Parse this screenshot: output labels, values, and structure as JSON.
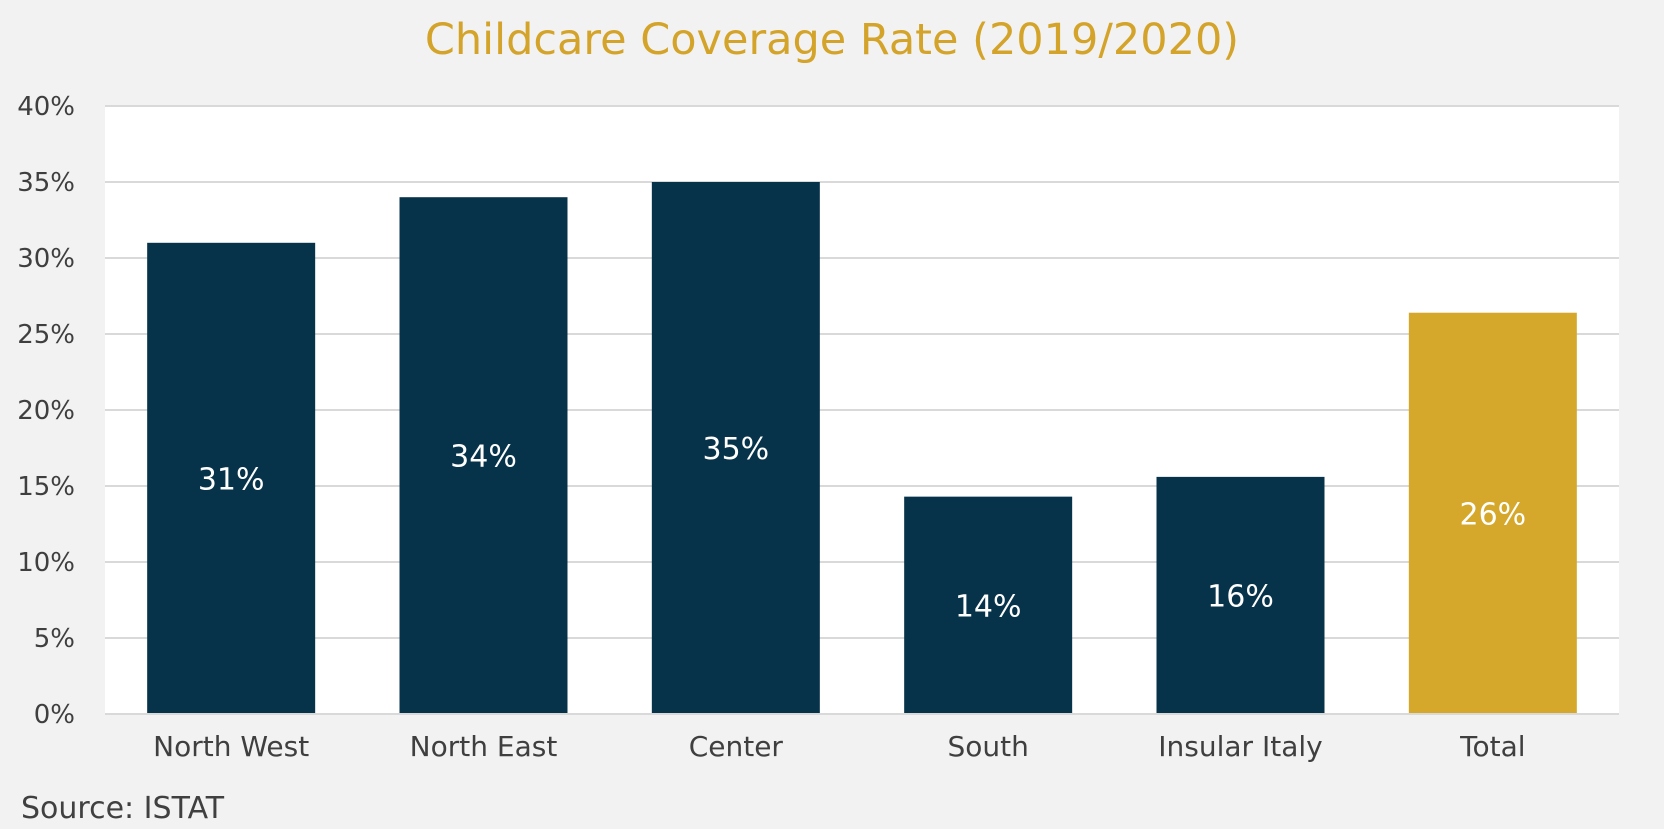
{
  "chart_data": {
    "type": "bar",
    "title": "Childcare Coverage Rate (2019/2020)",
    "categories": [
      "North West",
      "North East",
      "Center",
      "South",
      "Insular Italy",
      "Total"
    ],
    "values": [
      31,
      34,
      35,
      14.3,
      15.6,
      26.4
    ],
    "data_labels": [
      "31%",
      "34%",
      "35%",
      "14%",
      "16%",
      "26%"
    ],
    "ylim": [
      0,
      40
    ],
    "y_ticks": [
      0,
      5,
      10,
      15,
      20,
      25,
      30,
      35,
      40
    ],
    "y_tick_labels": [
      "0%",
      "5%",
      "10%",
      "15%",
      "20%",
      "25%",
      "30%",
      "35%",
      "40%"
    ],
    "grid": true,
    "legend": "none",
    "bar_colors": [
      "#07334a",
      "#07334a",
      "#07334a",
      "#07334a",
      "#07334a",
      "#d5a82b"
    ],
    "title_color": "#d4a42a",
    "gridline_color": "#d9d9d9",
    "plot_background": "#ffffff",
    "page_background": "#f2f2f2"
  },
  "source": "Source: ISTAT"
}
